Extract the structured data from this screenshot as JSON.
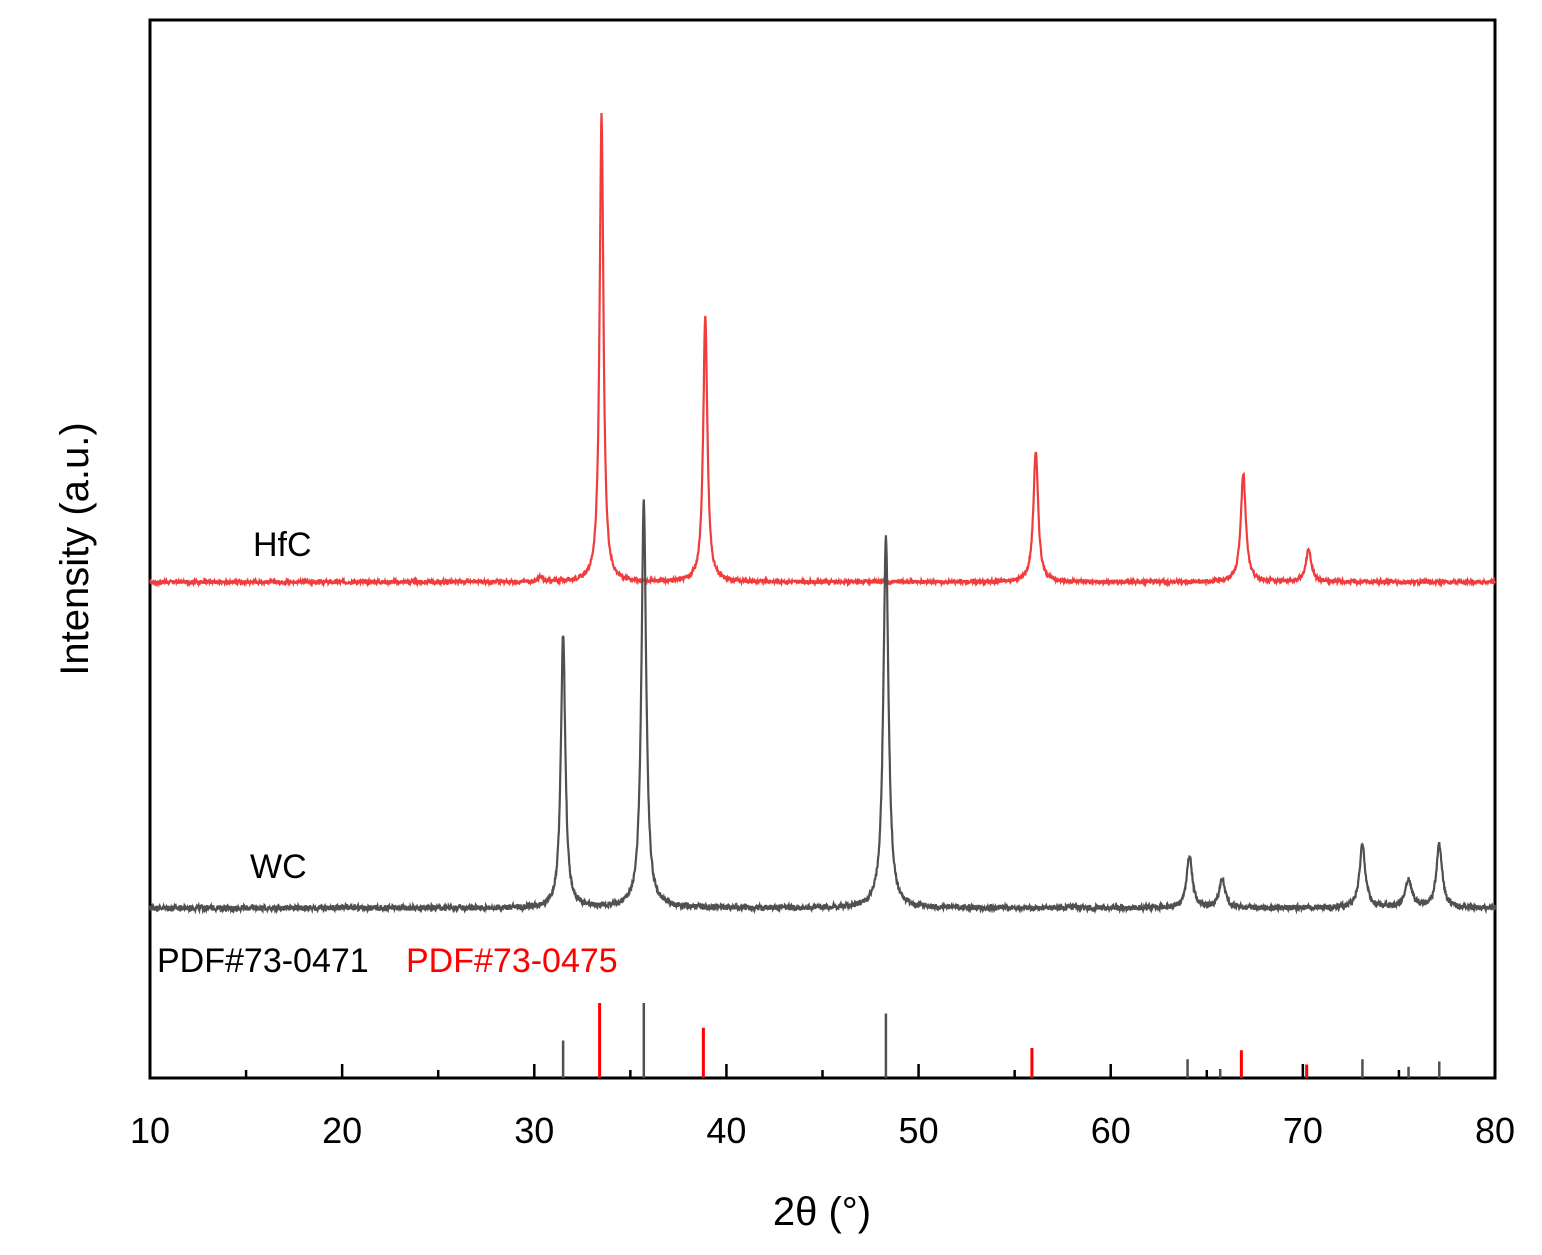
{
  "chart_data": {
    "type": "line",
    "xlabel": "2θ (°)",
    "ylabel": "Intensity (a.u.)",
    "xlim": [
      10,
      80
    ],
    "xticks": [
      "10",
      "20",
      "30",
      "40",
      "50",
      "60",
      "70",
      "80"
    ],
    "grid": false,
    "series": [
      {
        "name": "HfC",
        "color": "#f03c3c",
        "peaks": [
          {
            "x": 30.3,
            "h": 0.01,
            "w": 0.12
          },
          {
            "x": 33.5,
            "h": 1.0,
            "w": 0.12
          },
          {
            "x": 38.9,
            "h": 0.57,
            "w": 0.13
          },
          {
            "x": 56.1,
            "h": 0.28,
            "w": 0.15
          },
          {
            "x": 66.9,
            "h": 0.23,
            "w": 0.16
          },
          {
            "x": 70.3,
            "h": 0.07,
            "w": 0.17
          }
        ]
      },
      {
        "name": "WC",
        "color": "#505050",
        "peaks": [
          {
            "x": 31.5,
            "h": 0.39,
            "w": 0.14
          },
          {
            "x": 35.7,
            "h": 0.58,
            "w": 0.15
          },
          {
            "x": 48.3,
            "h": 0.53,
            "w": 0.16
          },
          {
            "x": 64.1,
            "h": 0.075,
            "w": 0.18
          },
          {
            "x": 65.8,
            "h": 0.04,
            "w": 0.18
          },
          {
            "x": 73.1,
            "h": 0.09,
            "w": 0.18
          },
          {
            "x": 75.5,
            "h": 0.04,
            "w": 0.2
          },
          {
            "x": 77.1,
            "h": 0.09,
            "w": 0.18
          }
        ]
      }
    ],
    "references": [
      {
        "label": "PDF#73-0471",
        "color": "#505050",
        "lines": [
          {
            "x": 31.5,
            "h": 0.5
          },
          {
            "x": 35.7,
            "h": 1.0
          },
          {
            "x": 48.3,
            "h": 0.86
          },
          {
            "x": 64.0,
            "h": 0.25
          },
          {
            "x": 65.7,
            "h": 0.12
          },
          {
            "x": 73.1,
            "h": 0.25
          },
          {
            "x": 75.5,
            "h": 0.15
          },
          {
            "x": 77.1,
            "h": 0.22
          }
        ]
      },
      {
        "label": "PDF#73-0475",
        "color": "#ff0000",
        "lines": [
          {
            "x": 33.4,
            "h": 1.0
          },
          {
            "x": 38.8,
            "h": 0.67
          },
          {
            "x": 55.9,
            "h": 0.4
          },
          {
            "x": 66.8,
            "h": 0.37
          },
          {
            "x": 70.2,
            "h": 0.18
          }
        ]
      }
    ]
  }
}
